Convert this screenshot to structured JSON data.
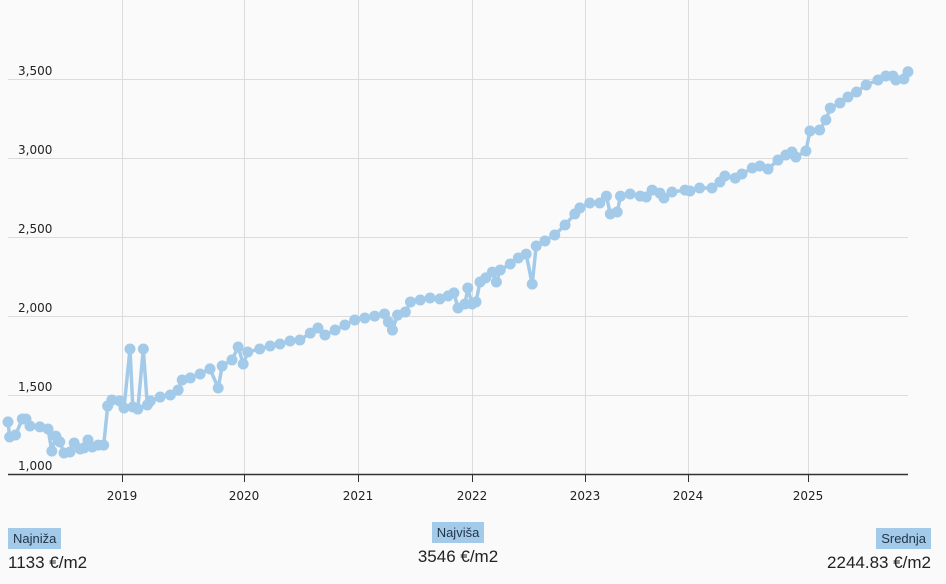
{
  "chart_data": {
    "type": "line",
    "title": "",
    "xlabel": "",
    "ylabel": "",
    "x_ticks": [
      "2019",
      "2020",
      "2021",
      "2022",
      "2023",
      "2024",
      "2025"
    ],
    "y_ticks": [
      "1,000",
      "1,500",
      "2,000",
      "2,500",
      "3,000",
      "3,500"
    ],
    "ylim": [
      1000,
      3800
    ],
    "grid": true,
    "color": "#a3cbe9",
    "series": [
      {
        "points": [
          [
            "2018-01-25",
            1330
          ],
          [
            "2018-01-30",
            1234
          ],
          [
            "2018-02-17",
            1247
          ],
          [
            "2018-03-07",
            1348
          ],
          [
            "2018-03-18",
            1348
          ],
          [
            "2018-03-30",
            1304
          ],
          [
            "2018-04-29",
            1298
          ],
          [
            "2018-05-23",
            1285
          ],
          [
            "2018-06-04",
            1145
          ],
          [
            "2018-06-16",
            1240
          ],
          [
            "2018-06-28",
            1203
          ],
          [
            "2018-07-10",
            1133
          ],
          [
            "2018-07-28",
            1139
          ],
          [
            "2018-08-10",
            1196
          ],
          [
            "2018-08-28",
            1158
          ],
          [
            "2018-09-09",
            1165
          ],
          [
            "2018-09-21",
            1215
          ],
          [
            "2018-10-03",
            1171
          ],
          [
            "2018-10-21",
            1183
          ],
          [
            "2018-11-07",
            1183
          ],
          [
            "2018-11-19",
            1430
          ],
          [
            "2018-12-01",
            1468
          ],
          [
            "2018-12-25",
            1462
          ],
          [
            "2019-01-07",
            1418
          ],
          [
            "2019-01-25",
            1791
          ],
          [
            "2019-02-03",
            1424
          ],
          [
            "2019-02-18",
            1411
          ],
          [
            "2019-03-04",
            1791
          ],
          [
            "2019-03-16",
            1437
          ],
          [
            "2019-03-25",
            1462
          ],
          [
            "2019-04-24",
            1487
          ],
          [
            "2019-05-24",
            1500
          ],
          [
            "2019-06-17",
            1532
          ],
          [
            "2019-06-29",
            1595
          ],
          [
            "2019-07-23",
            1608
          ],
          [
            "2019-08-22",
            1633
          ],
          [
            "2019-09-21",
            1665
          ],
          [
            "2019-10-15",
            1544
          ],
          [
            "2019-10-27",
            1684
          ],
          [
            "2019-11-26",
            1722
          ],
          [
            "2019-12-14",
            1804
          ],
          [
            "2019-12-29",
            1696
          ],
          [
            "2020-01-13",
            1772
          ],
          [
            "2020-02-21",
            1791
          ],
          [
            "2020-03-24",
            1810
          ],
          [
            "2020-04-25",
            1823
          ],
          [
            "2020-05-27",
            1842
          ],
          [
            "2020-06-28",
            1848
          ],
          [
            "2020-07-31",
            1892
          ],
          [
            "2020-08-25",
            1924
          ],
          [
            "2020-09-17",
            1880
          ],
          [
            "2020-10-19",
            1911
          ],
          [
            "2020-11-20",
            1943
          ],
          [
            "2020-12-21",
            1975
          ],
          [
            "2021-01-23",
            1987
          ],
          [
            "2021-02-24",
            1999
          ],
          [
            "2021-03-25",
            2013
          ],
          [
            "2021-04-07",
            1962
          ],
          [
            "2021-04-20",
            1911
          ],
          [
            "2021-05-06",
            2006
          ],
          [
            "2021-05-31",
            2025
          ],
          [
            "2021-06-17",
            2089
          ],
          [
            "2021-07-18",
            2101
          ],
          [
            "2021-08-19",
            2114
          ],
          [
            "2021-09-20",
            2108
          ],
          [
            "2021-10-16",
            2127
          ],
          [
            "2021-11-04",
            2146
          ],
          [
            "2021-11-17",
            2051
          ],
          [
            "2021-12-09",
            2076
          ],
          [
            "2021-12-18",
            2177
          ],
          [
            "2022-01-01",
            2076
          ],
          [
            "2022-01-14",
            2089
          ],
          [
            "2022-01-27",
            2215
          ],
          [
            "2022-02-15",
            2241
          ],
          [
            "2022-03-06",
            2278
          ],
          [
            "2022-03-19",
            2215
          ],
          [
            "2022-04-01",
            2291
          ],
          [
            "2022-05-03",
            2329
          ],
          [
            "2022-05-29",
            2367
          ],
          [
            "2022-06-24",
            2392
          ],
          [
            "2022-07-13",
            2202
          ],
          [
            "2022-07-26",
            2443
          ],
          [
            "2022-08-24",
            2475
          ],
          [
            "2022-09-25",
            2513
          ],
          [
            "2022-10-28",
            2576
          ],
          [
            "2022-11-29",
            2646
          ],
          [
            "2022-12-15",
            2684
          ],
          [
            "2023-01-18",
            2715
          ],
          [
            "2023-02-23",
            2715
          ],
          [
            "2023-03-16",
            2759
          ],
          [
            "2023-03-30",
            2646
          ],
          [
            "2023-04-24",
            2658
          ],
          [
            "2023-05-05",
            2759
          ],
          [
            "2023-06-09",
            2772
          ],
          [
            "2023-07-14",
            2759
          ],
          [
            "2023-08-05",
            2753
          ],
          [
            "2023-08-26",
            2797
          ],
          [
            "2023-09-23",
            2778
          ],
          [
            "2023-10-07",
            2747
          ],
          [
            "2023-11-05",
            2785
          ],
          [
            "2023-12-21",
            2797
          ],
          [
            "2024-01-07",
            2791
          ],
          [
            "2024-02-06",
            2810
          ],
          [
            "2024-03-13",
            2810
          ],
          [
            "2024-04-07",
            2848
          ],
          [
            "2024-04-22",
            2886
          ],
          [
            "2024-05-23",
            2873
          ],
          [
            "2024-06-13",
            2899
          ],
          [
            "2024-07-14",
            2937
          ],
          [
            "2024-08-07",
            2949
          ],
          [
            "2024-09-01",
            2930
          ],
          [
            "2024-10-01",
            2987
          ],
          [
            "2024-10-25",
            3019
          ],
          [
            "2024-11-13",
            3038
          ],
          [
            "2024-11-25",
            3006
          ],
          [
            "2024-12-25",
            3044
          ],
          [
            "2025-01-07",
            3171
          ],
          [
            "2025-02-06",
            3177
          ],
          [
            "2025-02-25",
            3241
          ],
          [
            "2025-03-08",
            3316
          ],
          [
            "2025-04-07",
            3348
          ],
          [
            "2025-05-01",
            3386
          ],
          [
            "2025-05-27",
            3418
          ],
          [
            "2025-06-26",
            3462
          ],
          [
            "2025-08-01",
            3494
          ],
          [
            "2025-08-25",
            3519
          ],
          [
            "2025-09-16",
            3519
          ],
          [
            "2025-09-25",
            3494
          ],
          [
            "2025-10-19",
            3500
          ],
          [
            "2025-11-01",
            3546
          ]
        ]
      }
    ]
  },
  "stats": {
    "min": {
      "label": "Najniža",
      "value": "1133 €/m2"
    },
    "max": {
      "label": "Najviša",
      "value": "3546 €/m2"
    },
    "avg": {
      "label": "Srednja",
      "value": "2244.83 €/m2"
    }
  }
}
